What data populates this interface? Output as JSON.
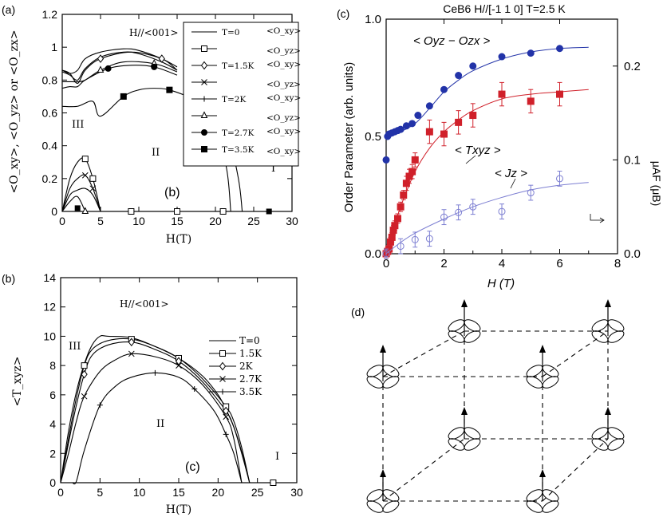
{
  "panel_labels": {
    "a": "(a)",
    "b": "(b)",
    "c": "(c)",
    "d": "(d)"
  },
  "chart_data": [
    {
      "id": "a",
      "type": "line",
      "annotation": "H//<001>",
      "inner_label": "(b)",
      "ylabel": "<O_xy>, <O_yz> or <O_zx>",
      "xlabel": "H(T)",
      "xlim": [
        0,
        30
      ],
      "ylim": [
        0,
        1.2
      ],
      "xticks": [
        0,
        5,
        10,
        15,
        20,
        25,
        30
      ],
      "yticks": [
        0,
        0.2,
        0.4,
        0.6,
        0.8,
        1,
        1.2
      ],
      "ytick_labels": [
        "0",
        "0.2",
        "0.4",
        "0.6",
        "0.8",
        "1",
        "1.2"
      ],
      "phase_labels": [
        "III",
        "II",
        "I"
      ],
      "legend": [
        {
          "t": "T=0",
          "q": "<O_xy>"
        },
        {
          "t": "",
          "q": "<O_yz>"
        },
        {
          "t": "T=1.5K",
          "q": "<O_xy>"
        },
        {
          "t": "",
          "q": "<O_yz>"
        },
        {
          "t": "T=2K",
          "q": "<O_xy>"
        },
        {
          "t": "",
          "q": "<O_yz>"
        },
        {
          "t": "T=2.7K",
          "q": "<O_xy>"
        },
        {
          "t": "T=3.5K",
          "q": "<O_xy>"
        }
      ],
      "series": [
        {
          "marker": "none",
          "x": [
            0,
            1,
            2,
            3,
            5,
            8,
            10,
            13,
            15
          ],
          "y": [
            0.86,
            0.84,
            0.86,
            0.93,
            0.97,
            0.99,
            0.98,
            0.93,
            0.88
          ]
        },
        {
          "marker": "none",
          "x": [
            0,
            1,
            2,
            3,
            5,
            8,
            10,
            13,
            15
          ],
          "y": [
            0.85,
            0.83,
            0.8,
            0.87,
            0.94,
            0.97,
            0.96,
            0.91,
            0.86
          ]
        },
        {
          "marker": "diamond",
          "x": [
            0,
            1,
            2,
            3,
            5,
            9,
            13,
            15
          ],
          "y": [
            0.86,
            0.84,
            0.78,
            0.86,
            0.93,
            0.97,
            0.93,
            0.86
          ]
        },
        {
          "marker": "triangle",
          "x": [
            0,
            1,
            2,
            3,
            5,
            8,
            12,
            15
          ],
          "y": [
            0.79,
            0.79,
            0.79,
            0.8,
            0.86,
            0.91,
            0.9,
            0.85
          ]
        },
        {
          "marker": "circle",
          "x": [
            0,
            1,
            2,
            3,
            6,
            9,
            12,
            15
          ],
          "y": [
            0.75,
            0.76,
            0.76,
            0.8,
            0.87,
            0.89,
            0.88,
            0.83
          ]
        },
        {
          "marker": "square",
          "x": [
            0,
            2,
            4,
            5,
            8,
            10,
            12,
            14,
            17
          ],
          "y": [
            0.64,
            0.64,
            0.67,
            0.58,
            0.7,
            0.74,
            0.75,
            0.74,
            0.69
          ]
        },
        {
          "marker": "square-open",
          "x": [
            0,
            1,
            2,
            3,
            4,
            5
          ],
          "y": [
            0,
            0.2,
            0.3,
            0.32,
            0.2,
            0
          ]
        },
        {
          "marker": "cross",
          "x": [
            0,
            1,
            2,
            3,
            4,
            5
          ],
          "y": [
            0,
            0.14,
            0.2,
            0.22,
            0.14,
            0
          ]
        },
        {
          "marker": "none",
          "x": [
            0,
            1,
            2,
            3,
            4,
            5
          ],
          "y": [
            0,
            0.1,
            0.13,
            0.14,
            0.1,
            0
          ]
        },
        {
          "marker": "none",
          "x": [
            0,
            1,
            2,
            3
          ],
          "y": [
            0,
            0.06,
            0.09,
            0
          ]
        }
      ],
      "baseline_markers": [
        {
          "marker": "square-fill",
          "x": 2,
          "y": 0.02
        },
        {
          "marker": "triangle",
          "x": 3,
          "y": 0
        },
        {
          "marker": "square-open",
          "x": 9,
          "y": 0
        },
        {
          "marker": "square-open",
          "x": 15,
          "y": 0
        },
        {
          "marker": "square-open",
          "x": 21,
          "y": 0
        },
        {
          "marker": "square-fill",
          "x": 27,
          "y": 0
        }
      ]
    },
    {
      "id": "b",
      "type": "line",
      "annotation": "H//<001>",
      "inner_label": "(c)",
      "ylabel": "<T_xyz>",
      "xlabel": "H(T)",
      "xlim": [
        0,
        30
      ],
      "ylim": [
        0,
        14
      ],
      "xticks": [
        0,
        5,
        10,
        15,
        20,
        25,
        30
      ],
      "yticks": [
        0,
        2,
        4,
        6,
        8,
        10,
        12,
        14
      ],
      "phase_labels": [
        "III",
        "II",
        "I"
      ],
      "legend": [
        {
          "t": "T=0",
          "marker": "none"
        },
        {
          "t": "1.5K",
          "marker": "square-open"
        },
        {
          "t": "2K",
          "marker": "diamond"
        },
        {
          "t": "2.7K",
          "marker": "cross"
        },
        {
          "t": "3.5K",
          "marker": "plus"
        }
      ],
      "series": [
        {
          "name": "T=0",
          "marker": "none",
          "x": [
            0,
            1,
            2,
            3,
            4,
            5,
            6,
            9,
            12,
            15,
            18,
            20,
            21,
            22,
            23,
            24
          ],
          "y": [
            0,
            3.5,
            6.2,
            8.1,
            9.4,
            10.0,
            10.0,
            9.9,
            9.3,
            8.5,
            7.3,
            6.0,
            5.0,
            3.8,
            2.1,
            0
          ]
        },
        {
          "name": "1.5K",
          "marker": "square-open",
          "x": [
            0,
            1,
            2,
            3,
            4,
            6,
            9,
            12,
            15,
            18,
            21,
            22,
            23,
            24
          ],
          "y": [
            0,
            3.0,
            5.8,
            8.0,
            9.1,
            9.7,
            9.8,
            9.3,
            8.5,
            7.1,
            5.2,
            4.2,
            2.4,
            0
          ]
        },
        {
          "name": "2K",
          "marker": "diamond",
          "x": [
            0,
            1,
            2,
            3,
            4,
            6,
            9,
            12,
            15,
            18,
            21,
            22,
            23,
            24
          ],
          "y": [
            0,
            2.7,
            5.3,
            7.4,
            8.7,
            9.4,
            9.6,
            9.1,
            8.3,
            6.9,
            4.9,
            3.8,
            2.0,
            0
          ]
        },
        {
          "name": "2.7K",
          "marker": "cross",
          "x": [
            0,
            1,
            2,
            3,
            5,
            7,
            9,
            12,
            15,
            18,
            21,
            22,
            23
          ],
          "y": [
            0,
            2.0,
            4.2,
            5.9,
            7.6,
            8.4,
            8.8,
            8.6,
            8.0,
            6.7,
            4.5,
            3.0,
            0
          ]
        },
        {
          "name": "3.5K",
          "marker": "plus",
          "x": [
            1.5,
            2,
            3,
            5,
            7,
            9,
            12,
            15,
            17,
            19.5,
            21,
            22,
            23
          ],
          "y": [
            0,
            0.1,
            2.2,
            5.3,
            6.6,
            7.2,
            7.5,
            7.2,
            6.4,
            4.9,
            3.3,
            2.0,
            0
          ]
        }
      ],
      "baseline_markers": [
        {
          "marker": "square-open",
          "x": 27,
          "y": 0
        }
      ]
    },
    {
      "id": "c",
      "type": "scatter",
      "title": "CeB6   H//[-1 1 0]   T=2.5 K",
      "ylabel": "Order Parameter  (arb. units)",
      "y2label": "μAF  (μB)",
      "xlabel": "H  (T)",
      "xlim": [
        0,
        8
      ],
      "ylim": [
        0,
        1.0
      ],
      "y2lim": [
        0,
        0.25
      ],
      "xticks": [
        0,
        2,
        4,
        6,
        8
      ],
      "yticks": [
        0.0,
        0.5,
        1.0
      ],
      "ytick_labels": [
        "0.0",
        "0.5",
        "1.0"
      ],
      "y2ticks": [
        0.0,
        0.1,
        0.2
      ],
      "y2tick_labels": [
        "0.0",
        "0.1",
        "0.2"
      ],
      "series": [
        {
          "name": "< Oyz − Ozx >",
          "color": "#2233a8",
          "marker": "circle",
          "x": [
            0.0,
            0.05,
            0.1,
            0.2,
            0.3,
            0.4,
            0.5,
            0.7,
            0.9,
            1.1,
            1.5,
            2.0,
            2.5,
            3.0,
            4.0,
            5.0,
            6.0
          ],
          "y": [
            0.4,
            0.5,
            0.51,
            0.515,
            0.52,
            0.525,
            0.53,
            0.545,
            0.555,
            0.59,
            0.63,
            0.7,
            0.76,
            0.8,
            0.84,
            0.855,
            0.875
          ],
          "fit": {
            "x": [
              0,
              0.5,
              1,
              1.5,
              2,
              2.5,
              3,
              4,
              5,
              6,
              7
            ],
            "y": [
              0.49,
              0.52,
              0.555,
              0.62,
              0.69,
              0.74,
              0.78,
              0.83,
              0.86,
              0.875,
              0.88
            ]
          }
        },
        {
          "name": "< Txyz >",
          "color": "#d0202a",
          "marker": "square",
          "x": [
            0.0,
            0.05,
            0.1,
            0.15,
            0.2,
            0.25,
            0.3,
            0.4,
            0.5,
            0.6,
            0.7,
            0.8,
            0.9,
            1.0,
            1.5,
            2.0,
            2.5,
            3.0,
            4.0,
            5.0,
            6.0
          ],
          "y": [
            0.0,
            0.01,
            0.02,
            0.05,
            0.07,
            0.1,
            0.12,
            0.15,
            0.2,
            0.25,
            0.3,
            0.33,
            0.35,
            0.4,
            0.52,
            0.51,
            0.56,
            0.59,
            0.68,
            0.65,
            0.68
          ],
          "err": [
            0.02,
            0.02,
            0.02,
            0.02,
            0.02,
            0.02,
            0.02,
            0.02,
            0.02,
            0.02,
            0.03,
            0.03,
            0.03,
            0.03,
            0.05,
            0.05,
            0.05,
            0.05,
            0.05,
            0.05,
            0.05
          ],
          "fit": {
            "x": [
              0,
              0.25,
              0.5,
              1,
              1.5,
              2,
              2.5,
              3,
              4,
              5,
              6,
              7
            ],
            "y": [
              0,
              0.1,
              0.2,
              0.35,
              0.45,
              0.52,
              0.57,
              0.61,
              0.66,
              0.68,
              0.69,
              0.7
            ]
          }
        },
        {
          "name": "< Jz >",
          "color": "#7d7fd2",
          "marker": "circle-open",
          "axis": "y2",
          "x": [
            0.0,
            0.5,
            1.0,
            1.5,
            2.0,
            2.5,
            3.0,
            4.0,
            5.0,
            6.0
          ],
          "y": [
            0.0,
            0.008,
            0.015,
            0.016,
            0.039,
            0.044,
            0.05,
            0.045,
            0.065,
            0.08
          ],
          "err": [
            0.005,
            0.008,
            0.008,
            0.008,
            0.008,
            0.008,
            0.008,
            0.008,
            0.008,
            0.008
          ],
          "fit": {
            "x": [
              0,
              0.5,
              1,
              2,
              3,
              4,
              5,
              6,
              7
            ],
            "y": [
              0,
              0.012,
              0.022,
              0.037,
              0.05,
              0.06,
              0.068,
              0.073,
              0.076
            ]
          }
        }
      ]
    }
  ],
  "diagram_d": {
    "description_free": true,
    "nodes": 8
  }
}
